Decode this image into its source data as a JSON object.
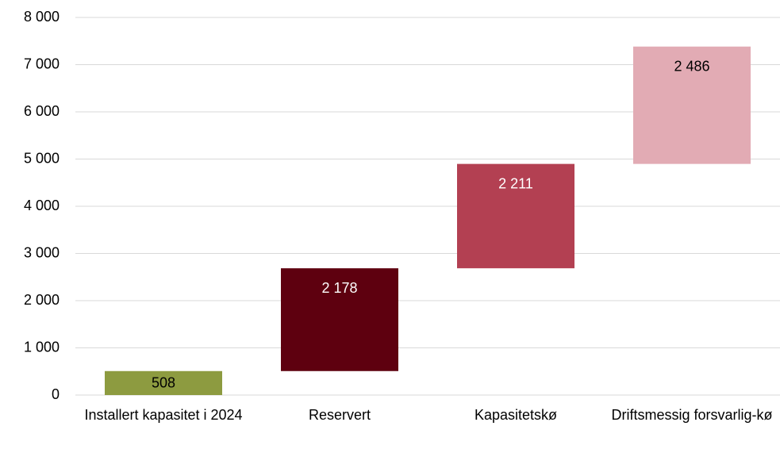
{
  "chart_data": {
    "type": "waterfall",
    "categories": [
      "Installert kapasitet i 2024",
      "Reservert",
      "Kapasitetskø",
      "Driftsmessig forsvarlig-kø"
    ],
    "values": [
      508,
      2178,
      2211,
      2486
    ],
    "value_labels": [
      "508",
      "2 178",
      "2 211",
      "2 486"
    ],
    "colors": [
      "#8d9b40",
      "#5e000f",
      "#b34052",
      "#e2abb4"
    ],
    "ylim": [
      0,
      8000
    ],
    "yticks": [
      0,
      {
        "value": 1000,
        "label": "1 000"
      },
      {
        "value": 2000,
        "label": "2 000"
      },
      {
        "value": 3000,
        "label": "3 000"
      },
      {
        "value": 4000,
        "label": "4 000"
      },
      {
        "value": 5000,
        "label": "5 000"
      },
      {
        "value": 6000,
        "label": "6 000"
      },
      {
        "value": 7000,
        "label": "7 000"
      },
      {
        "value": 8000,
        "label": "8 000"
      }
    ],
    "grid": true
  }
}
